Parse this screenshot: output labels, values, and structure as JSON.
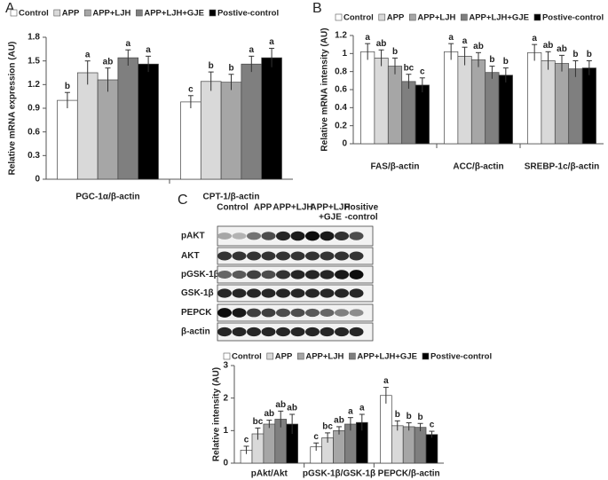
{
  "chart_data": [
    {
      "type": "bar",
      "panel": "A",
      "ylabel": "Relative mRNA expression (AU)",
      "categories": [
        "PGC-1α/β-actin",
        "CPT-1/β-actin"
      ],
      "ylim": [
        0,
        1.8
      ],
      "yticks": [
        0,
        0.3,
        0.6,
        0.9,
        1.2,
        1.5,
        1.8
      ],
      "series": [
        {
          "name": "Control",
          "color": "#ffffff",
          "values": [
            1.0,
            0.98
          ],
          "errors": [
            0.1,
            0.08
          ],
          "letters": [
            "b",
            "c"
          ]
        },
        {
          "name": "APP",
          "color": "#d9d9d9",
          "values": [
            1.35,
            1.24
          ],
          "errors": [
            0.15,
            0.12
          ],
          "letters": [
            "a",
            "b"
          ]
        },
        {
          "name": "APP+LJH",
          "color": "#a6a6a6",
          "values": [
            1.26,
            1.23
          ],
          "errors": [
            0.15,
            0.1
          ],
          "letters": [
            "ab",
            "b"
          ]
        },
        {
          "name": "APP+LJH+GJE",
          "color": "#7f7f7f",
          "values": [
            1.54,
            1.46
          ],
          "errors": [
            0.1,
            0.1
          ],
          "letters": [
            "a",
            "a"
          ]
        },
        {
          "name": "Postive-control",
          "color": "#000000",
          "values": [
            1.46,
            1.54
          ],
          "errors": [
            0.1,
            0.12
          ],
          "letters": [
            "a",
            "a"
          ]
        }
      ]
    },
    {
      "type": "bar",
      "panel": "B",
      "ylabel": "Relative mRNA intensity (AU)",
      "categories": [
        "FAS/β-actin",
        "ACC/β-actin",
        "SREBP-1c/β-actin"
      ],
      "ylim": [
        0,
        1.2
      ],
      "yticks": [
        0,
        0.2,
        0.4,
        0.6,
        0.8,
        1,
        1.2
      ],
      "series": [
        {
          "name": "Control",
          "color": "#ffffff",
          "values": [
            1.02,
            1.02,
            1.01
          ],
          "errors": [
            0.09,
            0.09,
            0.09
          ],
          "letters": [
            "a",
            "a",
            "a"
          ]
        },
        {
          "name": "APP",
          "color": "#d9d9d9",
          "values": [
            0.95,
            0.97,
            0.92
          ],
          "errors": [
            0.09,
            0.1,
            0.1
          ],
          "letters": [
            "ab",
            "a",
            "ab"
          ]
        },
        {
          "name": "APP+LJH",
          "color": "#a6a6a6",
          "values": [
            0.86,
            0.93,
            0.89
          ],
          "errors": [
            0.09,
            0.08,
            0.09
          ],
          "letters": [
            "b",
            "ab",
            "ab"
          ]
        },
        {
          "name": "APP+LJH+GJE",
          "color": "#7f7f7f",
          "values": [
            0.69,
            0.79,
            0.83
          ],
          "errors": [
            0.08,
            0.07,
            0.09
          ],
          "letters": [
            "bc",
            "b",
            "b"
          ]
        },
        {
          "name": "Postive-control",
          "color": "#000000",
          "values": [
            0.65,
            0.76,
            0.84
          ],
          "errors": [
            0.08,
            0.08,
            0.08
          ],
          "letters": [
            "c",
            "b",
            "b"
          ]
        }
      ]
    },
    {
      "type": "bar",
      "panel": "C",
      "ylabel": "Relative intensity (AU)",
      "categories": [
        "pAkt/Akt",
        "pGSK-1β/GSK-1β",
        "PEPCK/β-actin"
      ],
      "ylim": [
        0,
        3
      ],
      "yticks": [
        0,
        1,
        2,
        3
      ],
      "series": [
        {
          "name": "Control",
          "color": "#ffffff",
          "values": [
            0.4,
            0.5,
            2.08
          ],
          "errors": [
            0.12,
            0.12,
            0.25
          ],
          "letters": [
            "c",
            "c",
            "a"
          ]
        },
        {
          "name": "APP",
          "color": "#d9d9d9",
          "values": [
            0.9,
            0.78,
            1.15
          ],
          "errors": [
            0.18,
            0.15,
            0.15
          ],
          "letters": [
            "bc",
            "bc",
            "b"
          ]
        },
        {
          "name": "APP+LJH",
          "color": "#a6a6a6",
          "values": [
            1.2,
            1.0,
            1.12
          ],
          "errors": [
            0.12,
            0.12,
            0.12
          ],
          "letters": [
            "ab",
            "ab",
            "b"
          ]
        },
        {
          "name": "APP+LJH+GJE",
          "color": "#7f7f7f",
          "values": [
            1.35,
            1.2,
            1.1
          ],
          "errors": [
            0.25,
            0.2,
            0.12
          ],
          "letters": [
            "ab",
            "a",
            "b"
          ]
        },
        {
          "name": "Postive-control",
          "color": "#000000",
          "values": [
            1.2,
            1.25,
            0.88
          ],
          "errors": [
            0.3,
            0.25,
            0.1
          ],
          "letters": [
            "ab",
            "a",
            "c"
          ]
        }
      ]
    }
  ],
  "blot": {
    "lanes": [
      [
        "Control"
      ],
      [
        "APP"
      ],
      [
        "APP+LJH"
      ],
      [
        "APP+LJH",
        "+GJE"
      ],
      [
        "Positive",
        "-control"
      ]
    ],
    "rows": [
      "pAKT",
      "AKT",
      "pGSK-1β",
      "GSK-1β",
      "PEPCK",
      "β-actin"
    ]
  }
}
